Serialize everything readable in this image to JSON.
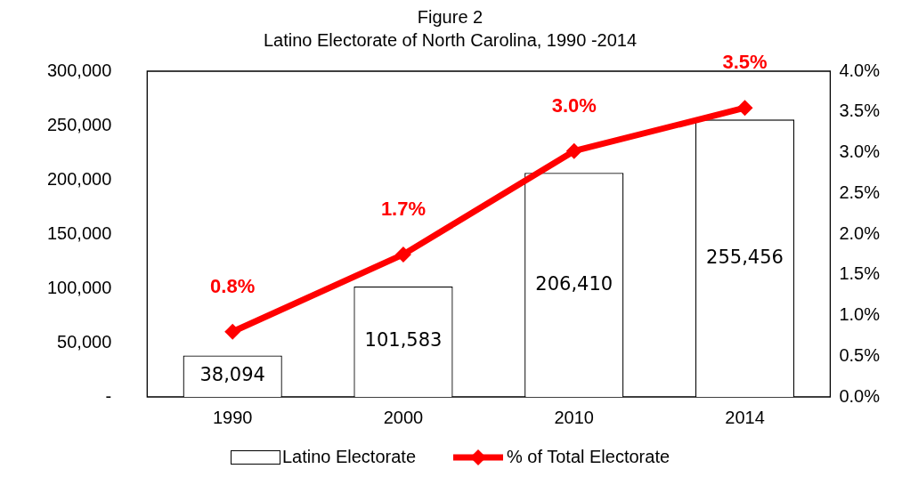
{
  "chart_data": {
    "type": "bar",
    "title": "Figure 2",
    "subtitle": "Latino Electorate of North Carolina, 1990 -2014",
    "categories": [
      "1990",
      "2000",
      "2010",
      "2014"
    ],
    "series": [
      {
        "name": "Latino Electorate",
        "color": "#ffffff",
        "values": [
          38094,
          101583,
          206410,
          255456
        ],
        "value_labels": [
          "38,094",
          "101,583",
          "206,410",
          "255,456"
        ]
      },
      {
        "name": "% of Total Electorate",
        "type": "line",
        "axis": "y2",
        "color": "#ff0000",
        "marker": "diamond",
        "values": [
          0.8,
          1.75,
          3.02,
          3.55
        ],
        "value_labels": [
          "0.8%",
          "1.7%",
          "3.0%",
          "3.5%"
        ]
      }
    ],
    "ylim": [
      0,
      300000
    ],
    "yticks": [
      {
        "value": 0,
        "label": "-"
      },
      {
        "value": 50000,
        "label": "50,000"
      },
      {
        "value": 100000,
        "label": "100,000"
      },
      {
        "value": 150000,
        "label": "150,000"
      },
      {
        "value": 200000,
        "label": "200,000"
      },
      {
        "value": 250000,
        "label": "250,000"
      },
      {
        "value": 300000,
        "label": "300,000"
      }
    ],
    "y2lim": [
      0,
      4
    ],
    "y2ticks": [
      {
        "value": 0,
        "label": "0.0%"
      },
      {
        "value": 0.5,
        "label": "0.5%"
      },
      {
        "value": 1,
        "label": "1.0%"
      },
      {
        "value": 1.5,
        "label": "1.5%"
      },
      {
        "value": 2,
        "label": "2.0%"
      },
      {
        "value": 2.5,
        "label": "2.5%"
      },
      {
        "value": 3,
        "label": "3.0%"
      },
      {
        "value": 3.5,
        "label": "3.5%"
      },
      {
        "value": 4,
        "label": "4.0%"
      }
    ],
    "grid": false,
    "legend": "bottom"
  }
}
